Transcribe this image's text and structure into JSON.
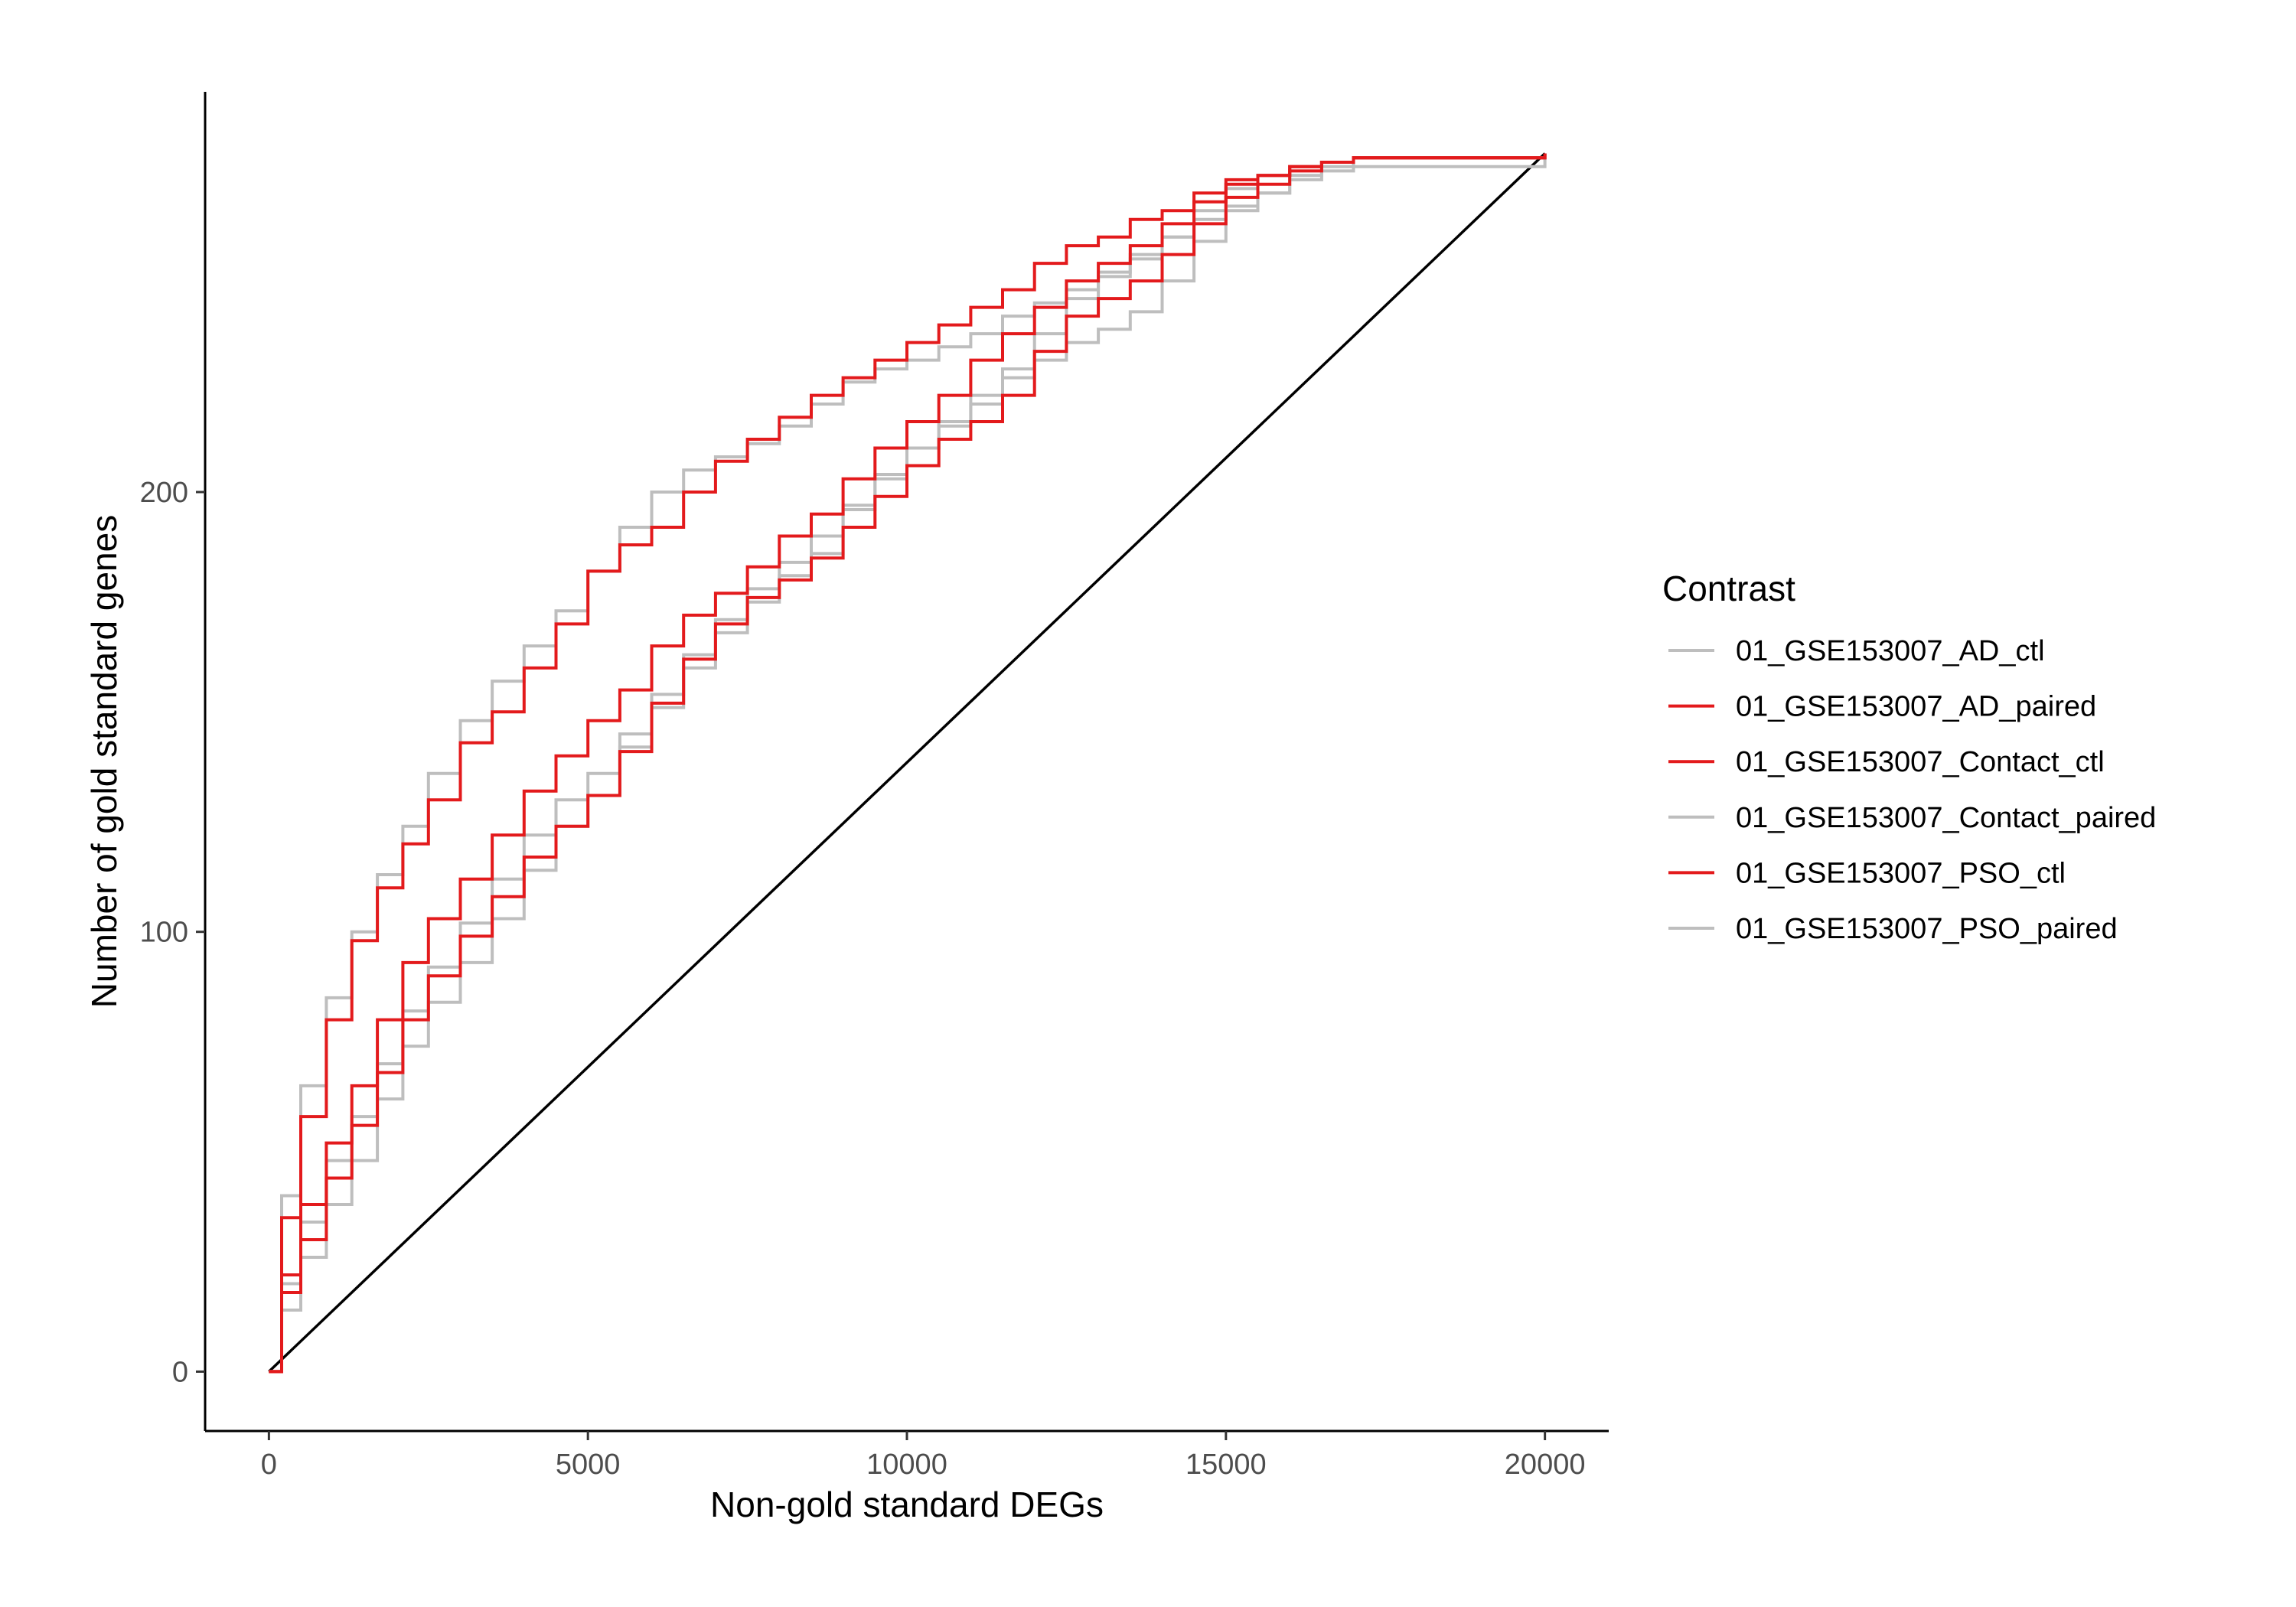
{
  "chart_data": {
    "type": "line",
    "xlabel": "Non-gold standard DEGs",
    "ylabel": "Number of gold standard genes",
    "xlim": [
      -1000,
      21000
    ],
    "ylim": [
      -13.5,
      291
    ],
    "x_ticks": [
      0,
      5000,
      10000,
      15000,
      20000
    ],
    "x_tick_labels": [
      "0",
      "5000",
      "10000",
      "15000",
      "20000"
    ],
    "y_ticks": [
      0,
      100,
      200
    ],
    "y_tick_labels": [
      "0",
      "100",
      "200"
    ],
    "grid": false,
    "legend_title": "Contrast",
    "legend_position": "right",
    "reference_line": {
      "x": [
        0,
        20000
      ],
      "y": [
        0,
        277
      ],
      "color": "#000000"
    },
    "series": [
      {
        "name": "01_GSE153007_AD_ctl",
        "color": "#bebebe",
        "x": [
          0,
          200,
          500,
          900,
          1300,
          1700,
          2100,
          2500,
          3000,
          3500,
          4000,
          4500,
          5000,
          5500,
          6000,
          6500,
          7000,
          7500,
          8000,
          8500,
          9000,
          9500,
          10000,
          10500,
          11000,
          11500,
          12000,
          12500,
          13000,
          13500,
          14000,
          14500,
          15000,
          15500,
          16000,
          16500,
          17000,
          20000
        ],
        "y": [
          0,
          40,
          65,
          85,
          100,
          113,
          124,
          136,
          148,
          157,
          165,
          173,
          182,
          192,
          200,
          205,
          208,
          211,
          215,
          220,
          225,
          228,
          230,
          233,
          236,
          240,
          243,
          246,
          250,
          254,
          258,
          262,
          265,
          268,
          271,
          273,
          274,
          277
        ]
      },
      {
        "name": "01_GSE153007_AD_paired",
        "color": "#e31a1c",
        "x": [
          0,
          200,
          500,
          900,
          1300,
          1700,
          2100,
          2500,
          3000,
          3500,
          4000,
          4500,
          5000,
          5500,
          6000,
          6500,
          7000,
          7500,
          8000,
          8500,
          9000,
          9500,
          10000,
          10500,
          11000,
          11500,
          12000,
          12500,
          13000,
          13500,
          14000,
          14500,
          15000,
          15500,
          16000,
          16500,
          17000,
          20000
        ],
        "y": [
          0,
          35,
          58,
          80,
          98,
          110,
          120,
          130,
          143,
          150,
          160,
          170,
          182,
          188,
          192,
          200,
          207,
          212,
          217,
          222,
          226,
          230,
          234,
          238,
          242,
          246,
          252,
          256,
          258,
          262,
          264,
          268,
          271,
          272,
          274,
          275,
          276,
          277
        ]
      },
      {
        "name": "01_GSE153007_Contact_ctl",
        "color": "#e31a1c",
        "x": [
          0,
          200,
          500,
          900,
          1300,
          1700,
          2100,
          2500,
          3000,
          3500,
          4000,
          4500,
          5000,
          5500,
          6000,
          6500,
          7000,
          7500,
          8000,
          8500,
          9000,
          9500,
          10000,
          10500,
          11000,
          11500,
          12000,
          12500,
          13000,
          13500,
          14000,
          14500,
          15000,
          15500,
          16000,
          16500,
          17000,
          20000
        ],
        "y": [
          0,
          22,
          38,
          52,
          65,
          80,
          93,
          103,
          112,
          122,
          132,
          140,
          148,
          155,
          165,
          172,
          177,
          183,
          190,
          195,
          203,
          210,
          216,
          222,
          230,
          236,
          242,
          248,
          252,
          256,
          261,
          266,
          270,
          272,
          274,
          275,
          276,
          277
        ]
      },
      {
        "name": "01_GSE153007_Contact_paired",
        "color": "#bebebe",
        "x": [
          0,
          200,
          500,
          900,
          1300,
          1700,
          2100,
          2500,
          3000,
          3500,
          4000,
          4500,
          5000,
          5500,
          6000,
          6500,
          7000,
          7500,
          8000,
          8500,
          9000,
          9500,
          10000,
          10500,
          11000,
          11500,
          12000,
          12500,
          13000,
          13500,
          14000,
          14500,
          15000,
          15500,
          16000,
          16500,
          17000,
          20000
        ],
        "y": [
          0,
          14,
          26,
          38,
          48,
          62,
          74,
          84,
          93,
          103,
          114,
          124,
          131,
          142,
          151,
          160,
          168,
          175,
          181,
          186,
          196,
          204,
          210,
          215,
          220,
          226,
          230,
          234,
          237,
          241,
          248,
          257,
          264,
          268,
          272,
          274,
          276,
          277
        ]
      },
      {
        "name": "01_GSE153007_PSO_ctl",
        "color": "#e31a1c",
        "x": [
          0,
          200,
          500,
          900,
          1300,
          1700,
          2100,
          2500,
          3000,
          3500,
          4000,
          4500,
          5000,
          5500,
          6000,
          6500,
          7000,
          7500,
          8000,
          8500,
          9000,
          9500,
          10000,
          10500,
          11000,
          11500,
          12000,
          12500,
          13000,
          13500,
          14000,
          14500,
          15000,
          15500,
          16000,
          16500,
          17000,
          20000
        ],
        "y": [
          0,
          18,
          30,
          44,
          56,
          68,
          80,
          90,
          99,
          108,
          117,
          124,
          131,
          141,
          152,
          162,
          170,
          176,
          180,
          185,
          192,
          199,
          206,
          212,
          216,
          222,
          232,
          240,
          244,
          248,
          254,
          261,
          267,
          270,
          273,
          275,
          276,
          277
        ]
      },
      {
        "name": "01_GSE153007_PSO_paired",
        "color": "#bebebe",
        "x": [
          0,
          200,
          500,
          900,
          1300,
          1700,
          2100,
          2500,
          3000,
          3500,
          4000,
          4500,
          5000,
          5500,
          6000,
          6500,
          7000,
          7500,
          8000,
          8500,
          9000,
          9500,
          10000,
          10500,
          11000,
          11500,
          12000,
          12500,
          13000,
          13500,
          14000,
          14500,
          15000,
          15500,
          16000,
          16500,
          17000,
          20000
        ],
        "y": [
          0,
          20,
          34,
          48,
          58,
          70,
          82,
          92,
          102,
          112,
          122,
          130,
          136,
          145,
          154,
          163,
          171,
          178,
          184,
          190,
          197,
          203,
          210,
          216,
          222,
          228,
          236,
          244,
          249,
          253,
          258,
          264,
          269,
          272,
          274,
          275,
          276,
          277
        ]
      }
    ]
  }
}
